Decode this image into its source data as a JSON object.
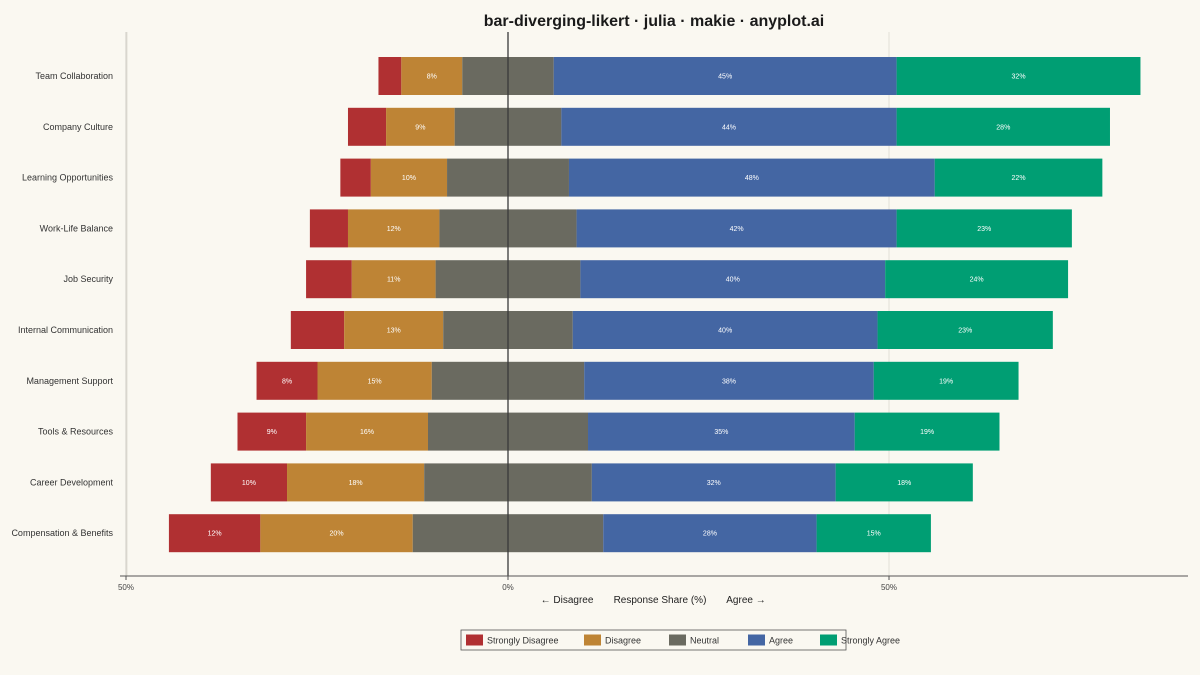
{
  "chart_data": {
    "type": "bar",
    "orientation": "horizontal",
    "layout": "diverging-stacked",
    "title": "bar-diverging-likert · julia · makie · anyplot.ai",
    "xlabel": "Response Share (%)",
    "xlabel_left": "← Disagree",
    "xlabel_right": "Agree →",
    "xlim": [
      -50,
      50
    ],
    "xticks": [
      -50,
      0,
      50
    ],
    "xtick_labels": [
      "50%",
      "0%",
      "50%"
    ],
    "grid": true,
    "legend_position": "bottom",
    "categories": [
      "Team Collaboration",
      "Company Culture",
      "Learning Opportunities",
      "Work-Life Balance",
      "Job Security",
      "Internal Communication",
      "Management Support",
      "Tools & Resources",
      "Career Development",
      "Compensation & Benefits"
    ],
    "series": [
      {
        "name": "Strongly Disagree",
        "color": "#B03032",
        "values": [
          3,
          5,
          4,
          5,
          6,
          7,
          8,
          9,
          10,
          12
        ]
      },
      {
        "name": "Disagree",
        "color": "#BE8435",
        "values": [
          8,
          9,
          10,
          12,
          11,
          13,
          15,
          16,
          18,
          20
        ]
      },
      {
        "name": "Neutral",
        "color": "#6A6A60",
        "values": [
          12,
          14,
          16,
          18,
          19,
          17,
          20,
          21,
          22,
          25
        ]
      },
      {
        "name": "Agree",
        "color": "#4466A3",
        "values": [
          45,
          44,
          48,
          42,
          40,
          40,
          38,
          35,
          32,
          28
        ]
      },
      {
        "name": "Strongly Agree",
        "color": "#009E73",
        "values": [
          32,
          28,
          22,
          23,
          24,
          23,
          19,
          19,
          18,
          15
        ]
      }
    ]
  }
}
